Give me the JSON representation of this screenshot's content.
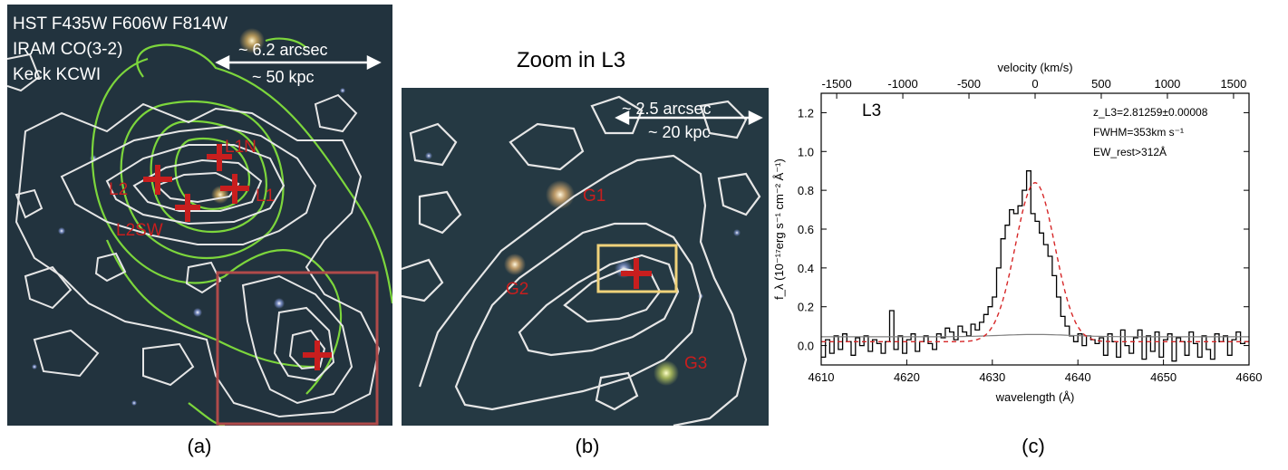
{
  "panel_a": {
    "legend": [
      "HST F435W F606W F814W",
      "IRAM CO(3-2)",
      "Keck KCWI"
    ],
    "scale_arcsec": "~ 6.2 arcsec",
    "scale_kpc": "~ 50 kpc",
    "sources": [
      "L1N",
      "L2",
      "L1",
      "L2SW"
    ],
    "caption": "(a)"
  },
  "panel_b": {
    "title": "Zoom in L3",
    "scale_arcsec": "~ 2.5 arcsec",
    "scale_kpc": "~ 20 kpc",
    "galaxies": [
      "G1",
      "G2",
      "G3"
    ],
    "caption": "(b)"
  },
  "panel_c": {
    "caption": "(c)",
    "chart_data": {
      "type": "line",
      "title": "",
      "label": "L3",
      "annotations": [
        "z_L3=2.81259±0.00008",
        "FWHM=353km s⁻¹",
        "EW_rest>312Å"
      ],
      "xlabel": "wavelength (Å)",
      "ylabel": "f_λ (10⁻¹⁷erg s⁻¹ cm⁻² Å⁻¹)",
      "top_xlabel": "velocity (km/s)",
      "xlim": [
        4610,
        4660
      ],
      "ylim": [
        -0.1,
        1.3
      ],
      "x_ticks": [
        4610,
        4620,
        4630,
        4640,
        4650,
        4660
      ],
      "y_ticks": [
        0.0,
        0.2,
        0.4,
        0.6,
        0.8,
        1.0,
        1.2
      ],
      "top_ticks": [
        -1500,
        -1000,
        -500,
        0,
        500,
        1000,
        1500
      ],
      "series": [
        {
          "kind": "data",
          "color": "#000000",
          "x": [
            4610.0,
            4610.5,
            4611.0,
            4611.5,
            4612.0,
            4612.5,
            4613.0,
            4613.5,
            4614.0,
            4614.5,
            4615.0,
            4615.5,
            4616.0,
            4616.5,
            4617.0,
            4617.5,
            4618.0,
            4618.5,
            4619.0,
            4619.5,
            4620.0,
            4620.5,
            4621.0,
            4621.5,
            4622.0,
            4622.5,
            4623.0,
            4623.5,
            4624.0,
            4624.5,
            4625.0,
            4625.5,
            4626.0,
            4626.5,
            4627.0,
            4627.5,
            4628.0,
            4628.5,
            4629.0,
            4629.5,
            4630.0,
            4630.5,
            4631.0,
            4631.5,
            4632.0,
            4632.5,
            4633.0,
            4633.5,
            4634.0,
            4634.5,
            4635.0,
            4635.5,
            4636.0,
            4636.5,
            4637.0,
            4637.5,
            4638.0,
            4638.5,
            4639.0,
            4639.5,
            4640.0,
            4640.5,
            4641.0,
            4641.5,
            4642.0,
            4642.5,
            4643.0,
            4643.5,
            4644.0,
            4644.5,
            4645.0,
            4645.5,
            4646.0,
            4646.5,
            4647.0,
            4647.5,
            4648.0,
            4648.5,
            4649.0,
            4649.5,
            4650.0,
            4650.5,
            4651.0,
            4651.5,
            4652.0,
            4652.5,
            4653.0,
            4653.5,
            4654.0,
            4654.5,
            4655.0,
            4655.5,
            4656.0,
            4656.5,
            4657.0,
            4657.5,
            4658.0,
            4658.5,
            4659.0,
            4659.5
          ],
          "y": [
            -0.06,
            0.03,
            -0.04,
            0.05,
            -0.02,
            0.06,
            0.02,
            -0.05,
            0.04,
            0.0,
            0.05,
            -0.03,
            0.03,
            0.01,
            -0.04,
            0.02,
            0.18,
            -0.02,
            0.05,
            -0.04,
            0.03,
            0.06,
            -0.03,
            0.02,
            0.05,
            0.01,
            -0.02,
            0.06,
            0.04,
            0.09,
            0.07,
            0.03,
            0.1,
            0.07,
            0.05,
            0.11,
            0.08,
            0.12,
            0.16,
            0.2,
            0.25,
            0.4,
            0.55,
            0.62,
            0.7,
            0.68,
            0.72,
            0.8,
            0.9,
            0.68,
            0.64,
            0.58,
            0.52,
            0.46,
            0.36,
            0.25,
            0.15,
            0.1,
            0.05,
            0.02,
            0.06,
            0.0,
            0.05,
            0.03,
            0.01,
            0.04,
            -0.05,
            0.06,
            0.02,
            -0.06,
            0.08,
            0.0,
            -0.04,
            0.04,
            0.08,
            -0.07,
            0.05,
            -0.03,
            0.07,
            -0.06,
            0.03,
            0.06,
            -0.08,
            0.04,
            0.02,
            -0.05,
            0.07,
            0.01,
            -0.06,
            0.05,
            -0.02,
            -0.07,
            0.06,
            0.02,
            0.05,
            -0.05,
            0.03,
            0.07,
            0.01,
            0.02
          ]
        },
        {
          "kind": "gaussian-fit",
          "color": "#d62728",
          "peak": 0.82,
          "center": 4635.0,
          "sigma": 2.3,
          "baseline": 0.02
        },
        {
          "kind": "error",
          "color": "#808080"
        }
      ]
    }
  }
}
